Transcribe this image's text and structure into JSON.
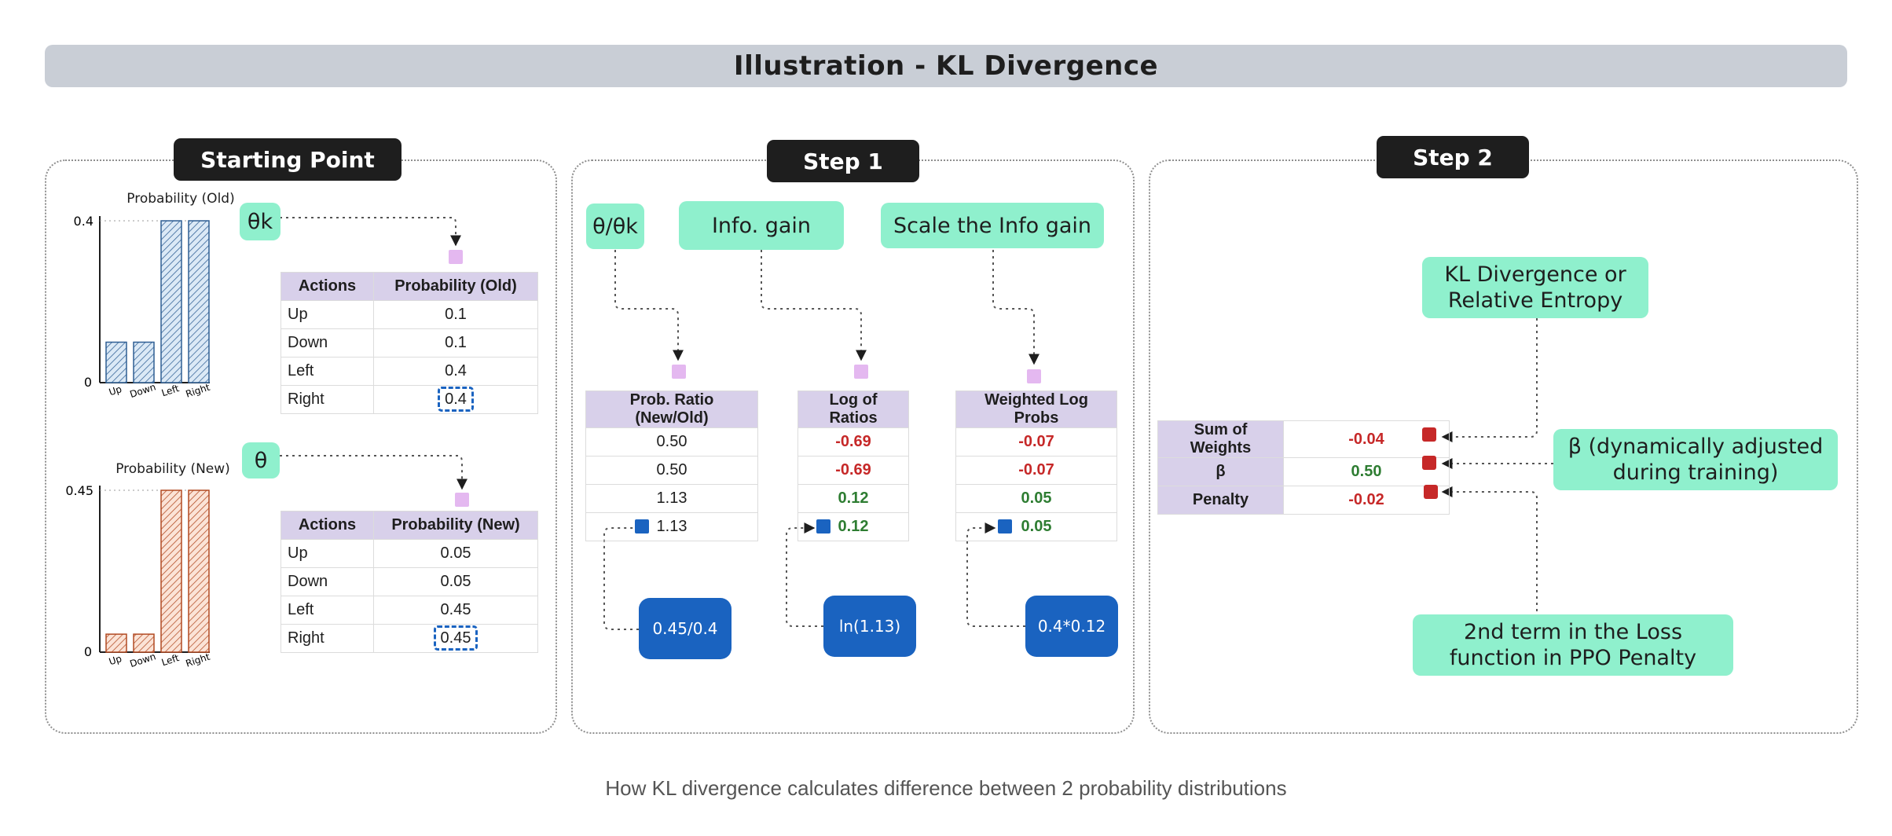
{
  "title": "Illustration - KL Divergence",
  "caption": "How KL divergence calculates difference between 2 probability distributions",
  "colors": {
    "note": "#8ff0cd",
    "calc": "#1a63c0",
    "negative": "#c62828",
    "positive": "#2e7d32",
    "header": "#d8d0ea",
    "old_bars": "#9ec3e6",
    "new_bars": "#f2b89a"
  },
  "starting_point": {
    "label": "Starting Point",
    "theta_k": "θk",
    "theta": "θ",
    "table_old": {
      "headers": [
        "Actions",
        "Probability (Old)"
      ],
      "rows": [
        [
          "Up",
          "0.1"
        ],
        [
          "Down",
          "0.1"
        ],
        [
          "Left",
          "0.4"
        ],
        [
          "Right",
          "0.4"
        ]
      ]
    },
    "table_new": {
      "headers": [
        "Actions",
        "Probability (New)"
      ],
      "rows": [
        [
          "Up",
          "0.05"
        ],
        [
          "Down",
          "0.05"
        ],
        [
          "Left",
          "0.45"
        ],
        [
          "Right",
          "0.45"
        ]
      ]
    }
  },
  "chart_data": [
    {
      "type": "bar",
      "title": "Probability (Old)",
      "categories": [
        "Up",
        "Down",
        "Left",
        "Right"
      ],
      "values": [
        0.1,
        0.1,
        0.4,
        0.4
      ],
      "yticks": [
        "0.4",
        "0"
      ],
      "ylim": [
        0,
        0.4
      ]
    },
    {
      "type": "bar",
      "title": "Probability (New)",
      "categories": [
        "Up",
        "Down",
        "Left",
        "Right"
      ],
      "values": [
        0.05,
        0.05,
        0.45,
        0.45
      ],
      "yticks": [
        "0.45",
        "0"
      ],
      "ylim": [
        0,
        0.45
      ]
    }
  ],
  "step1": {
    "label": "Step 1",
    "notes": [
      "θ/θk",
      "Info. gain",
      "Scale the Info gain"
    ],
    "ratio": {
      "header": "Prob. Ratio (New/Old)",
      "values": [
        "0.50",
        "0.50",
        "1.13",
        "1.13"
      ]
    },
    "log": {
      "header": "Log of Ratios",
      "values": [
        "-0.69",
        "-0.69",
        "0.12",
        "0.12"
      ]
    },
    "weighted": {
      "header": "Weighted Log Probs",
      "values": [
        "-0.07",
        "-0.07",
        "0.05",
        "0.05"
      ]
    },
    "calcs": [
      "0.45/0.4",
      "ln(1.13)",
      "0.4*0.12"
    ]
  },
  "step2": {
    "label": "Step 2",
    "kl_note": "KL Divergence or Relative Entropy",
    "beta_note": "β (dynamically adjusted during training)",
    "loss_note": "2nd term in the Loss function in PPO Penalty",
    "rows": [
      {
        "label": "Sum of Weights",
        "value": "-0.04"
      },
      {
        "label": "β",
        "value": "0.50"
      },
      {
        "label": "Penalty",
        "value": "-0.02"
      }
    ]
  }
}
